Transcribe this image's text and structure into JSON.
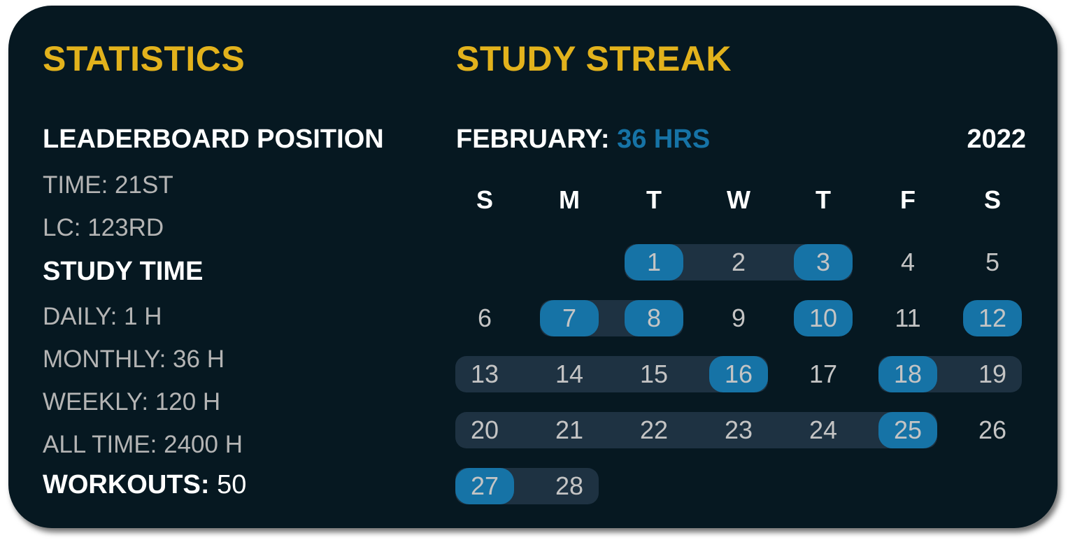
{
  "statistics": {
    "title": "STATISTICS",
    "leaderboard_heading": "LEADERBOARD POSITION",
    "time_rank": "TIME: 21ST",
    "lc_rank": "LC: 123RD",
    "study_time_heading": "STUDY TIME",
    "daily": "DAILY: 1 H",
    "monthly": "MONTHLY: 36 H",
    "weekly": "WEEKLY: 120 H",
    "all_time": "ALL TIME: 2400 H",
    "workouts_label": "WORKOUTS:",
    "workouts_value": "50"
  },
  "streak": {
    "title": "STUDY STREAK",
    "month_label": "FEBRUARY:",
    "month_hours": "36 HRS",
    "year": "2022",
    "weekdays": [
      "S",
      "M",
      "T",
      "W",
      "T",
      "F",
      "S"
    ],
    "first_weekday_index": 2,
    "days_in_month": 28,
    "highlighted_days": [
      1,
      3,
      7,
      8,
      10,
      12,
      16,
      18,
      25,
      27
    ],
    "streak_ranges": [
      [
        1,
        3
      ],
      [
        7,
        8
      ],
      [
        13,
        16
      ],
      [
        18,
        19
      ],
      [
        20,
        25
      ],
      [
        27,
        28
      ]
    ],
    "colors": {
      "highlight": "#1673a6",
      "streak_bar": "#1e3242",
      "title": "#e2b21c",
      "background": "#061821"
    }
  }
}
